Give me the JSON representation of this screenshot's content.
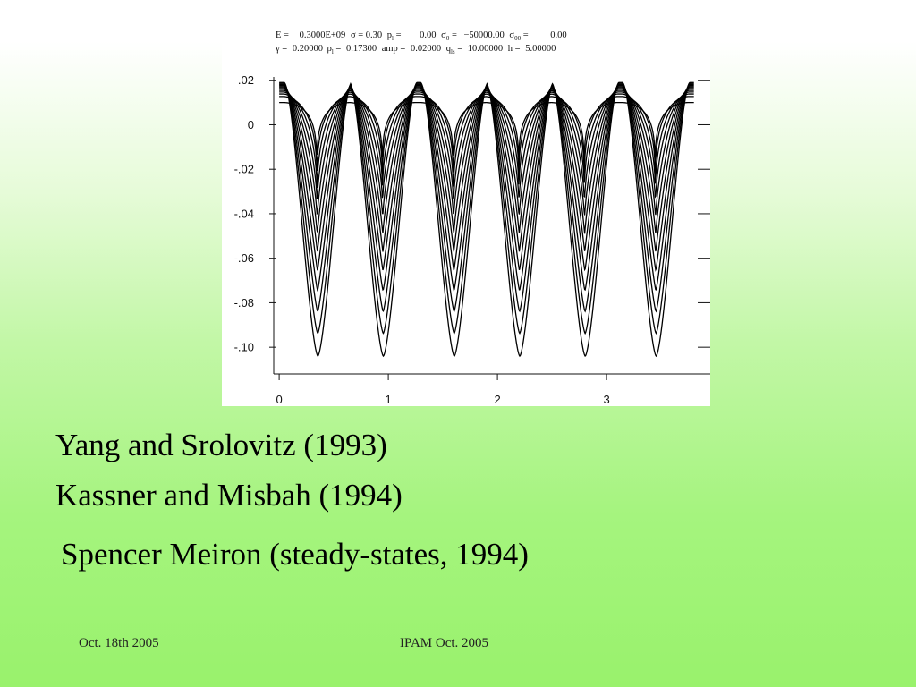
{
  "plot": {
    "param_lines": [
      [
        "E =",
        "0.3000E+09",
        "σ = 0.30",
        "p",
        "l",
        " =",
        "0.00",
        "σ",
        "0",
        " =",
        "−50000.00",
        "σ",
        "00",
        " =",
        "0.00"
      ],
      [
        "γ =",
        "0.20000",
        "ρ",
        "l",
        " =",
        "0.17300",
        "amp =",
        "0.02000",
        "q",
        "ls",
        " =",
        "10.00000",
        "h =",
        "5.00000"
      ]
    ],
    "y_tick_labels": [
      ".02",
      "0",
      "-.02",
      "-.04",
      "-.06",
      "-.08",
      "-.10"
    ],
    "x_tick_labels": [
      "0",
      "1",
      "2",
      "3"
    ]
  },
  "chart_data": {
    "type": "line",
    "title": "",
    "xlabel": "",
    "ylabel": "",
    "xlim": [
      -0.05,
      3.95
    ],
    "ylim": [
      -0.112,
      0.0215
    ],
    "x_ticks": [
      0,
      1,
      2,
      3
    ],
    "y_ticks": [
      0.02,
      0,
      -0.02,
      -0.04,
      -0.06,
      -0.08,
      -0.1
    ],
    "grid": false,
    "legend": "none",
    "domain": [
      0,
      3.8
    ],
    "num_curves": 12,
    "peak_value_range": [
      0.011,
      0.019
    ],
    "trough_value_range": [
      -0.022,
      -0.105
    ],
    "trough_x": [
      0.35,
      0.95,
      1.6,
      2.2,
      2.8,
      3.45
    ],
    "line_color": "#000000"
  },
  "citations": [
    "Yang and Srolovitz (1993)",
    "Kassner and Misbah (1994)",
    "Spencer Meiron (steady-states, 1994)"
  ],
  "footer": {
    "date": "Oct. 18th 2005",
    "event": "IPAM Oct. 2005"
  }
}
